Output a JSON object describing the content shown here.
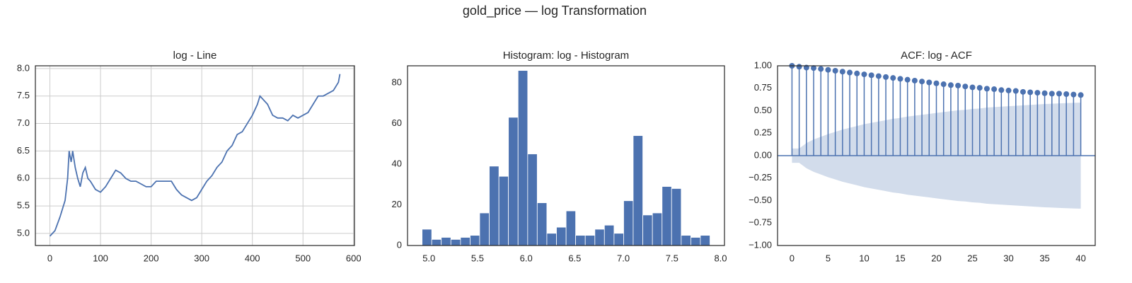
{
  "title": "gold_price — log Transformation",
  "chart_data": [
    {
      "type": "line",
      "title": "log - Line",
      "color": "#4c72b0",
      "grid": true,
      "x": [
        0,
        5,
        10,
        20,
        30,
        35,
        38,
        42,
        45,
        50,
        55,
        60,
        65,
        70,
        75,
        80,
        90,
        100,
        110,
        120,
        130,
        140,
        150,
        160,
        170,
        180,
        190,
        200,
        210,
        220,
        230,
        240,
        250,
        260,
        270,
        280,
        290,
        300,
        310,
        320,
        330,
        340,
        350,
        360,
        370,
        380,
        390,
        400,
        410,
        415,
        420,
        430,
        440,
        450,
        460,
        470,
        480,
        490,
        500,
        510,
        520,
        530,
        540,
        550,
        560,
        570,
        573
      ],
      "values": [
        4.95,
        5.0,
        5.05,
        5.3,
        5.6,
        6.0,
        6.5,
        6.3,
        6.5,
        6.2,
        6.0,
        5.85,
        6.1,
        6.2,
        6.0,
        5.95,
        5.8,
        5.75,
        5.85,
        6.0,
        6.15,
        6.1,
        6.0,
        5.95,
        5.95,
        5.9,
        5.85,
        5.85,
        5.95,
        5.95,
        5.95,
        5.95,
        5.8,
        5.7,
        5.65,
        5.6,
        5.65,
        5.8,
        5.95,
        6.05,
        6.2,
        6.3,
        6.5,
        6.6,
        6.8,
        6.85,
        7.0,
        7.15,
        7.35,
        7.5,
        7.45,
        7.35,
        7.15,
        7.1,
        7.1,
        7.05,
        7.15,
        7.1,
        7.15,
        7.2,
        7.35,
        7.5,
        7.5,
        7.55,
        7.6,
        7.75,
        7.9
      ],
      "xlim": [
        -28.7,
        601.7
      ],
      "ylim": [
        4.78,
        8.05
      ],
      "xticks": [
        0,
        100,
        200,
        300,
        400,
        500,
        600
      ],
      "yticks": [
        {
          "value": 5,
          "label": "5.0"
        },
        5.5,
        {
          "value": 6,
          "label": "6.0"
        },
        6.5,
        {
          "value": 7,
          "label": "7.0"
        },
        7.5,
        {
          "value": 8,
          "label": "8.0"
        }
      ]
    },
    {
      "type": "histogram",
      "title": "Histogram: log - Histogram",
      "color": "#4c72b0",
      "grid": false,
      "bins": [
        4.93,
        5.029,
        5.127,
        5.226,
        5.325,
        5.424,
        5.522,
        5.621,
        5.72,
        5.818,
        5.917,
        6.016,
        6.114,
        6.213,
        6.312,
        6.411,
        6.509,
        6.608,
        6.707,
        6.805,
        6.904,
        7.003,
        7.101,
        7.2,
        7.299,
        7.398,
        7.496,
        7.595,
        7.694,
        7.792,
        7.891
      ],
      "values": [
        8,
        3,
        4,
        3,
        4,
        5,
        16,
        39,
        34,
        63,
        86,
        45,
        21,
        6,
        9,
        17,
        5,
        5,
        8,
        10,
        6,
        22,
        54,
        15,
        16,
        29,
        28,
        5,
        4,
        5
      ],
      "xlim": [
        4.78,
        8.04
      ],
      "ylim": [
        0,
        88.3
      ],
      "xticks": [
        {
          "value": 5,
          "label": "5.0"
        },
        5.5,
        {
          "value": 6,
          "label": "6.0"
        },
        6.5,
        {
          "value": 7,
          "label": "7.0"
        },
        7.5,
        {
          "value": 8,
          "label": "8.0"
        }
      ],
      "yticks": [
        0,
        20,
        40,
        60,
        80
      ]
    },
    {
      "type": "acf",
      "title": "ACF: log - ACF",
      "color": "#4c72b0",
      "grid": false,
      "x": [
        0,
        1,
        2,
        3,
        4,
        5,
        6,
        7,
        8,
        9,
        10,
        11,
        12,
        13,
        14,
        15,
        16,
        17,
        18,
        19,
        20,
        21,
        22,
        23,
        24,
        25,
        26,
        27,
        28,
        29,
        30,
        31,
        32,
        33,
        34,
        35,
        36,
        37,
        38,
        39,
        40
      ],
      "values": [
        1,
        0.99,
        0.98,
        0.975,
        0.965,
        0.955,
        0.945,
        0.935,
        0.925,
        0.915,
        0.905,
        0.895,
        0.885,
        0.875,
        0.865,
        0.855,
        0.845,
        0.835,
        0.825,
        0.815,
        0.805,
        0.795,
        0.785,
        0.78,
        0.77,
        0.76,
        0.755,
        0.745,
        0.74,
        0.73,
        0.725,
        0.72,
        0.71,
        0.705,
        0.7,
        0.695,
        0.69,
        0.69,
        0.685,
        0.68,
        0.675
      ],
      "confint": [
        0.08,
        0.08,
        0.14,
        0.18,
        0.21,
        0.24,
        0.265,
        0.29,
        0.31,
        0.33,
        0.35,
        0.365,
        0.38,
        0.395,
        0.41,
        0.42,
        0.435,
        0.445,
        0.455,
        0.465,
        0.475,
        0.485,
        0.495,
        0.505,
        0.51,
        0.52,
        0.525,
        0.535,
        0.54,
        0.545,
        0.55,
        0.555,
        0.56,
        0.565,
        0.57,
        0.575,
        0.578,
        0.582,
        0.585,
        0.588,
        0.59
      ],
      "xlim": [
        -2,
        42
      ],
      "ylim": [
        -1,
        1
      ],
      "xticks": [
        0,
        5,
        10,
        15,
        20,
        25,
        30,
        35,
        40
      ],
      "yticks": [
        {
          "value": -1,
          "label": "−1.00"
        },
        {
          "value": -0.75,
          "label": "−0.75"
        },
        {
          "value": -0.5,
          "label": "−0.50"
        },
        {
          "value": -0.25,
          "label": "−0.25"
        },
        {
          "value": 0,
          "label": "0.00"
        },
        0.25,
        {
          "value": 0.5,
          "label": "0.50"
        },
        0.75,
        {
          "value": 1,
          "label": "1.00"
        }
      ]
    }
  ]
}
